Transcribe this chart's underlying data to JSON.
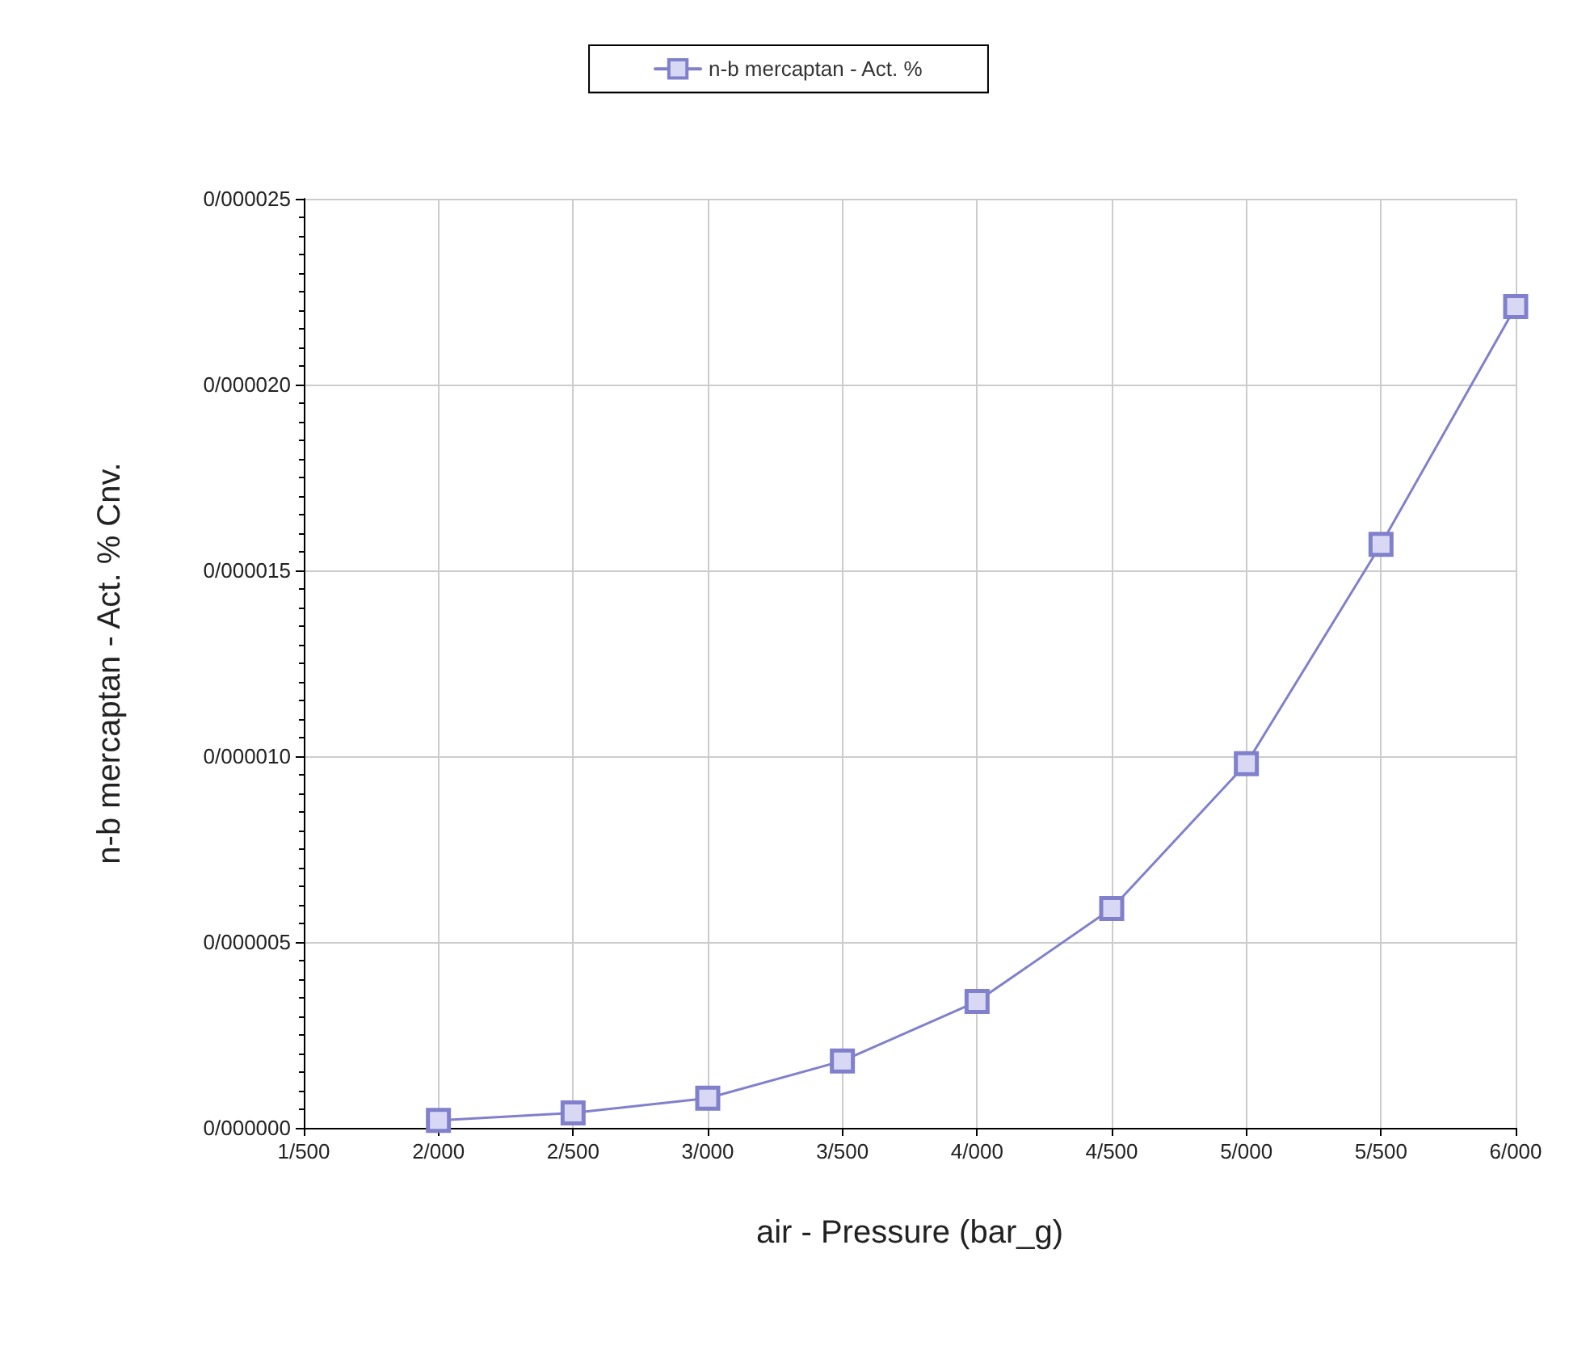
{
  "chart_data": {
    "type": "line",
    "xlabel": "air - Pressure (bar_g)",
    "ylabel": "n-b mercaptan - Act. % Cnv.",
    "categories": [
      "1/500",
      "2/000",
      "2/500",
      "3/000",
      "3/500",
      "4/000",
      "4/500",
      "5/000",
      "5/500",
      "6/000"
    ],
    "series": [
      {
        "name": "n-b mercaptan - Act. %",
        "color": "#8080cc",
        "values": [
          null,
          2e-07,
          4e-07,
          8e-07,
          1.8e-06,
          3.4e-06,
          5.9e-06,
          9.8e-06,
          1.57e-05,
          2.21e-05
        ]
      }
    ],
    "ylim": [
      0,
      2.5e-05
    ],
    "yticks": [
      {
        "value": 0,
        "label": "0/000000"
      },
      {
        "value": 5e-06,
        "label": "0/000005"
      },
      {
        "value": 1e-05,
        "label": "0/000010"
      },
      {
        "value": 1.5e-05,
        "label": "0/000015"
      },
      {
        "value": 2e-05,
        "label": "0/000020"
      },
      {
        "value": 2.5e-05,
        "label": "0/000025"
      }
    ],
    "grid": true,
    "legend": "top",
    "marker": "square",
    "line_style": "solid"
  }
}
